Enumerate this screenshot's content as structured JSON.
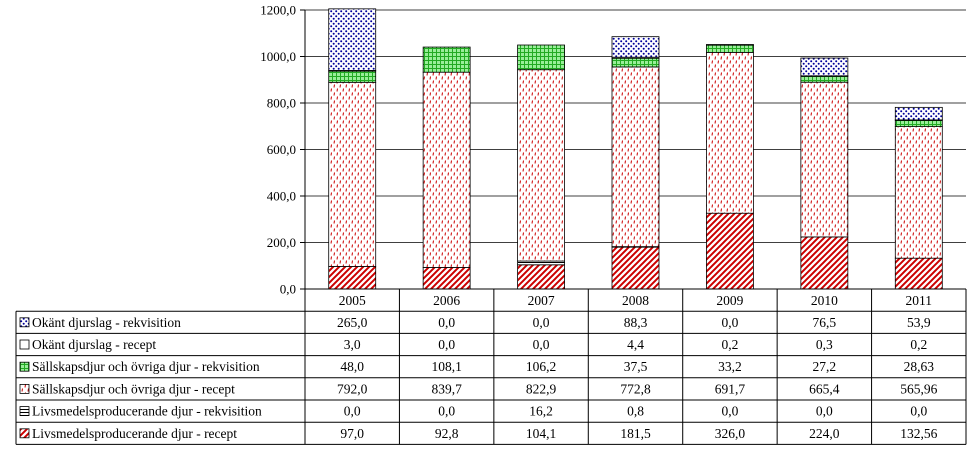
{
  "chart_data": {
    "type": "stacked-bar-with-data-table",
    "title": "",
    "xlabel": "",
    "ylabel": "",
    "ylim": [
      0,
      1200
    ],
    "y_ticks": [
      "0,0",
      "200,0",
      "400,0",
      "600,0",
      "800,0",
      "1000,0",
      "1200,0"
    ],
    "grid": true,
    "legend": "in-table-left",
    "categories": [
      "2005",
      "2006",
      "2007",
      "2008",
      "2009",
      "2010",
      "2011"
    ],
    "series": [
      {
        "name": "Okänt djurslag - rekvisition",
        "values": [
          265.0,
          0.0,
          0.0,
          88.3,
          0.0,
          76.5,
          53.9
        ],
        "labels": [
          "265,0",
          "0,0",
          "0,0",
          "88,3",
          "0,0",
          "76,5",
          "53,9"
        ],
        "color": "#000099",
        "pattern": "dots"
      },
      {
        "name": "Okänt djurslag - recept",
        "values": [
          3.0,
          0.0,
          0.0,
          4.4,
          0.2,
          0.3,
          0.2
        ],
        "labels": [
          "3,0",
          "0,0",
          "0,0",
          "4,4",
          "0,2",
          "0,3",
          "0,2"
        ],
        "color": "#000000",
        "pattern": "plain"
      },
      {
        "name": "Sällskapsdjur och övriga djur - rekvisition",
        "values": [
          48.0,
          108.1,
          106.2,
          37.5,
          33.2,
          27.2,
          28.63
        ],
        "labels": [
          "48,0",
          "108,1",
          "106,2",
          "37,5",
          "33,2",
          "27,2",
          "28,63"
        ],
        "color": "#33cc33",
        "pattern": "grid"
      },
      {
        "name": "Sällskapsdjur och övriga djur - recept",
        "values": [
          792.0,
          839.7,
          822.9,
          772.8,
          691.7,
          665.4,
          565.96
        ],
        "labels": [
          "792,0",
          "839,7",
          "822,9",
          "772,8",
          "691,7",
          "665,4",
          "565,96"
        ],
        "color": "#cc0000",
        "pattern": "dashes"
      },
      {
        "name": "Livsmedelsproducerande djur - rekvisition",
        "values": [
          0.0,
          0.0,
          16.2,
          0.8,
          0.0,
          0.0,
          0.0
        ],
        "labels": [
          "0,0",
          "0,0",
          "16,2",
          "0,8",
          "0,0",
          "0,0",
          "0,0"
        ],
        "color": "#000000",
        "pattern": "hstripes"
      },
      {
        "name": "Livsmedelsproducerande djur - recept",
        "values": [
          97.0,
          92.8,
          104.1,
          181.5,
          326.0,
          224.0,
          132.56
        ],
        "labels": [
          "97,0",
          "92,8",
          "104,1",
          "181,5",
          "326,0",
          "224,0",
          "132,56"
        ],
        "color": "#cc0000",
        "pattern": "diagonal"
      }
    ]
  }
}
